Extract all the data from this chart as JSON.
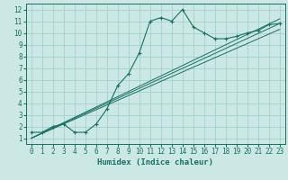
{
  "xlabel": "Humidex (Indice chaleur)",
  "bg_color": "#cce8e4",
  "line_color": "#1a6e64",
  "grid_color": "#99cccc",
  "xlim": [
    -0.5,
    23.5
  ],
  "ylim": [
    0.5,
    12.5
  ],
  "xticks": [
    0,
    1,
    2,
    3,
    4,
    5,
    6,
    7,
    8,
    9,
    10,
    11,
    12,
    13,
    14,
    15,
    16,
    17,
    18,
    19,
    20,
    21,
    22,
    23
  ],
  "yticks": [
    1,
    2,
    3,
    4,
    5,
    6,
    7,
    8,
    9,
    10,
    11,
    12
  ],
  "main_x": [
    0,
    1,
    2,
    3,
    4,
    5,
    6,
    7,
    8,
    9,
    10,
    11,
    12,
    13,
    14,
    15,
    16,
    17,
    18,
    19,
    20,
    21,
    22,
    23
  ],
  "main_y": [
    1.5,
    1.5,
    2.0,
    2.2,
    1.5,
    1.5,
    2.2,
    3.5,
    5.5,
    6.5,
    8.3,
    11.0,
    11.3,
    11.0,
    12.0,
    10.5,
    10.0,
    9.5,
    9.5,
    9.7,
    10.0,
    10.2,
    10.7,
    10.8
  ],
  "line1_x": [
    0,
    23
  ],
  "line1_y": [
    1.0,
    10.3
  ],
  "line2_x": [
    0,
    23
  ],
  "line2_y": [
    1.0,
    10.8
  ],
  "line3_x": [
    0,
    23
  ],
  "line3_y": [
    1.0,
    11.2
  ]
}
